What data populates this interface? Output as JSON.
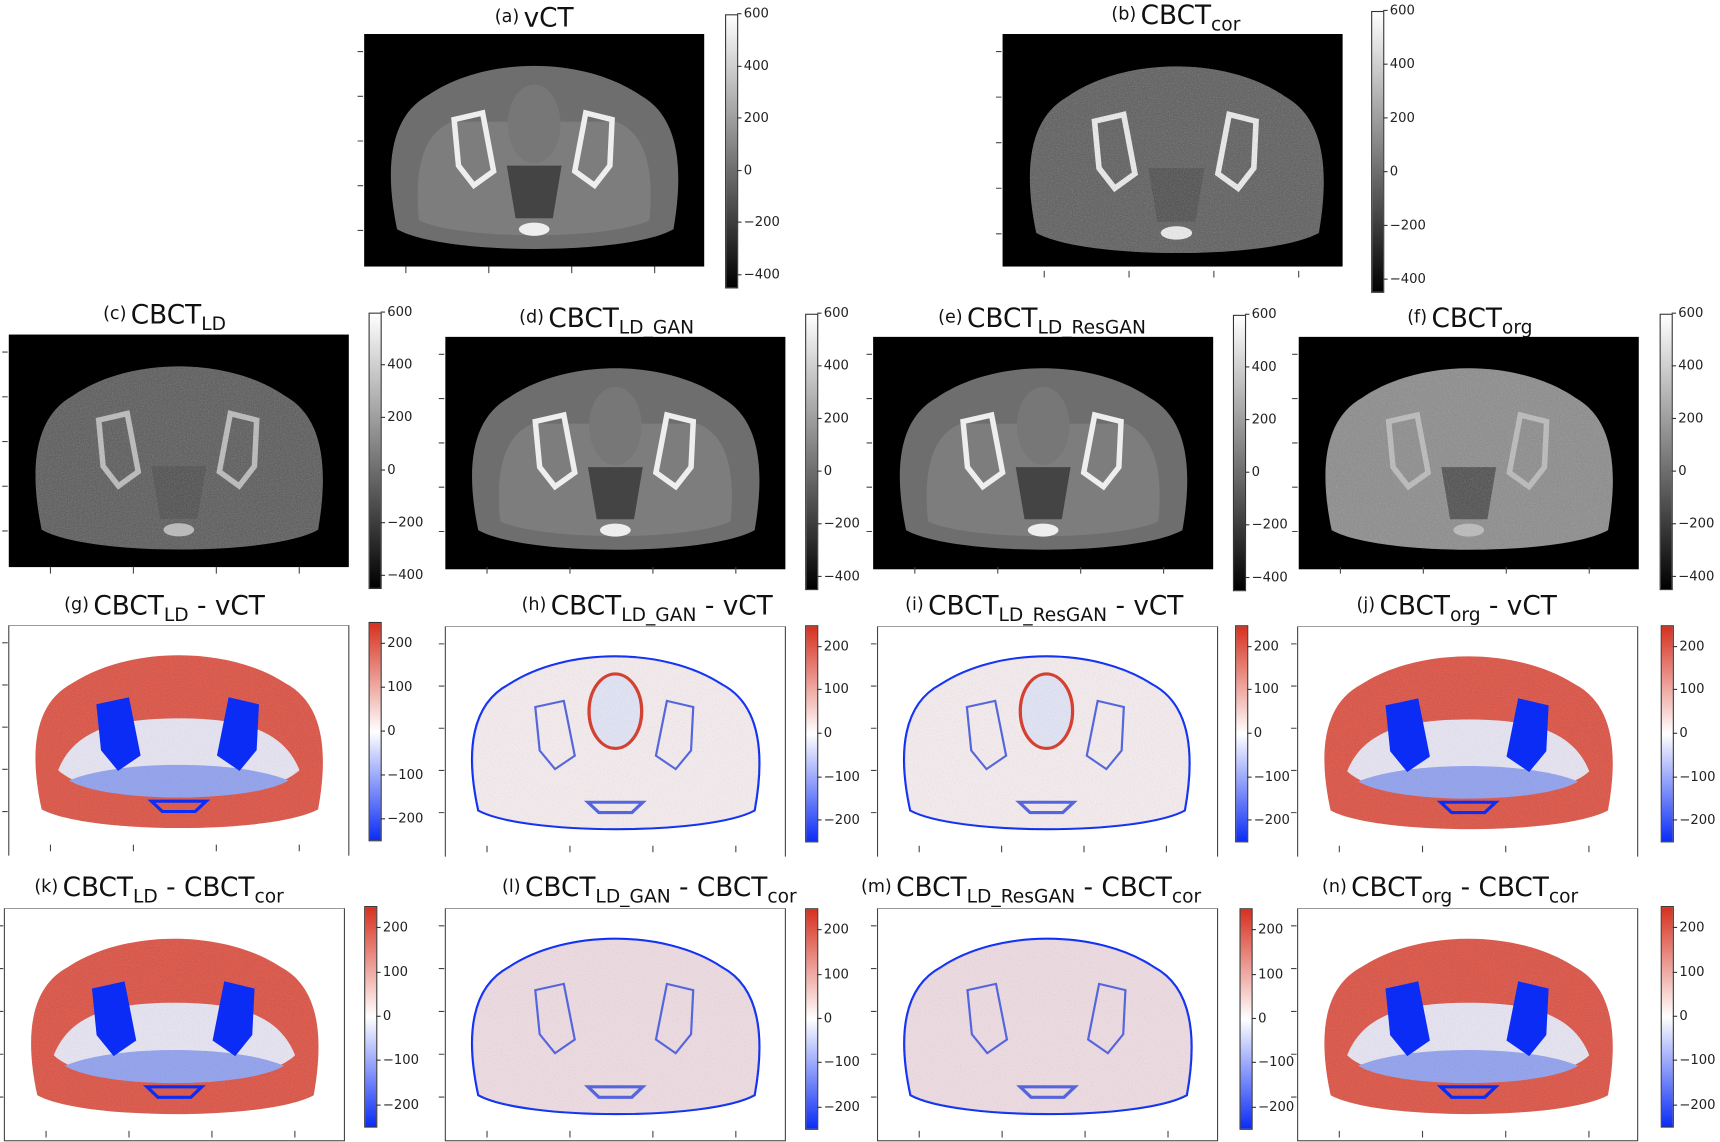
{
  "figure": {
    "panels": [
      {
        "id": "a",
        "prefix": "(a)",
        "base": "vCT",
        "sub": "",
        "mid": "",
        "suffix_base": "",
        "suffix_sub": "",
        "kind": "ct",
        "style": "vct"
      },
      {
        "id": "b",
        "prefix": "(b)",
        "base": "CBCT",
        "sub": "cor",
        "mid": "",
        "suffix_base": "",
        "suffix_sub": "",
        "kind": "ct",
        "style": "noisy"
      },
      {
        "id": "c",
        "prefix": "(c)",
        "base": "CBCT",
        "sub": "LD",
        "mid": "",
        "suffix_base": "",
        "suffix_sub": "",
        "kind": "ct",
        "style": "ld"
      },
      {
        "id": "d",
        "prefix": "(d)",
        "base": "CBCT",
        "sub": "LD_GAN",
        "mid": "",
        "suffix_base": "",
        "suffix_sub": "",
        "kind": "ct",
        "style": "vct"
      },
      {
        "id": "e",
        "prefix": "(e)",
        "base": "CBCT",
        "sub": "LD_ResGAN",
        "mid": "",
        "suffix_base": "",
        "suffix_sub": "",
        "kind": "ct",
        "style": "vct"
      },
      {
        "id": "f",
        "prefix": "(f)",
        "base": "CBCT",
        "sub": "org",
        "mid": "",
        "suffix_base": "",
        "suffix_sub": "",
        "kind": "ct",
        "style": "org"
      },
      {
        "id": "g",
        "prefix": "(g)",
        "base": "CBCT",
        "sub": "LD",
        "mid": " - ",
        "suffix_base": "vCT",
        "suffix_sub": "",
        "kind": "diff",
        "style": "strong"
      },
      {
        "id": "h",
        "prefix": "(h)",
        "base": "CBCT",
        "sub": "LD_GAN",
        "mid": " - ",
        "suffix_base": "vCT",
        "suffix_sub": "",
        "kind": "diff",
        "style": "light"
      },
      {
        "id": "i",
        "prefix": "(i)",
        "base": "CBCT",
        "sub": "LD_ResGAN",
        "mid": " - ",
        "suffix_base": "vCT",
        "suffix_sub": "",
        "kind": "diff",
        "style": "light"
      },
      {
        "id": "j",
        "prefix": "(j)",
        "base": "CBCT",
        "sub": "org",
        "mid": " - ",
        "suffix_base": "vCT",
        "suffix_sub": "",
        "kind": "diff",
        "style": "strong"
      },
      {
        "id": "k",
        "prefix": "(k)",
        "base": "CBCT",
        "sub": "LD",
        "mid": " - ",
        "suffix_base": "CBCT",
        "suffix_sub": "cor",
        "kind": "diff",
        "style": "strong"
      },
      {
        "id": "l",
        "prefix": "(l)",
        "base": "CBCT",
        "sub": "LD_GAN",
        "mid": " - ",
        "suffix_base": "CBCT",
        "suffix_sub": "cor",
        "kind": "diff",
        "style": "noise"
      },
      {
        "id": "m",
        "prefix": "(m)",
        "base": "CBCT",
        "sub": "LD_ResGAN",
        "mid": " - ",
        "suffix_base": "CBCT",
        "suffix_sub": "cor",
        "kind": "diff",
        "style": "noise"
      },
      {
        "id": "n",
        "prefix": "(n)",
        "base": "CBCT",
        "sub": "org",
        "mid": " - ",
        "suffix_base": "CBCT",
        "suffix_sub": "cor",
        "kind": "diff",
        "style": "strong"
      }
    ],
    "colorbars": {
      "ct": {
        "range": [
          -450,
          600
        ],
        "ticks": [
          "600",
          "400",
          "200",
          "0",
          "−200",
          "−400"
        ],
        "tick_values": [
          600,
          400,
          200,
          0,
          -200,
          -400
        ],
        "colormap": "gray"
      },
      "diff": {
        "range": [
          -250,
          250
        ],
        "ticks": [
          "200",
          "100",
          "0",
          "−100",
          "−200"
        ],
        "tick_values": [
          200,
          100,
          0,
          -100,
          -200
        ],
        "colormap": "bwr",
        "colors": {
          "high": "#d7301f",
          "mid": "#ffffff",
          "low": "#0b2cf5"
        }
      }
    }
  }
}
